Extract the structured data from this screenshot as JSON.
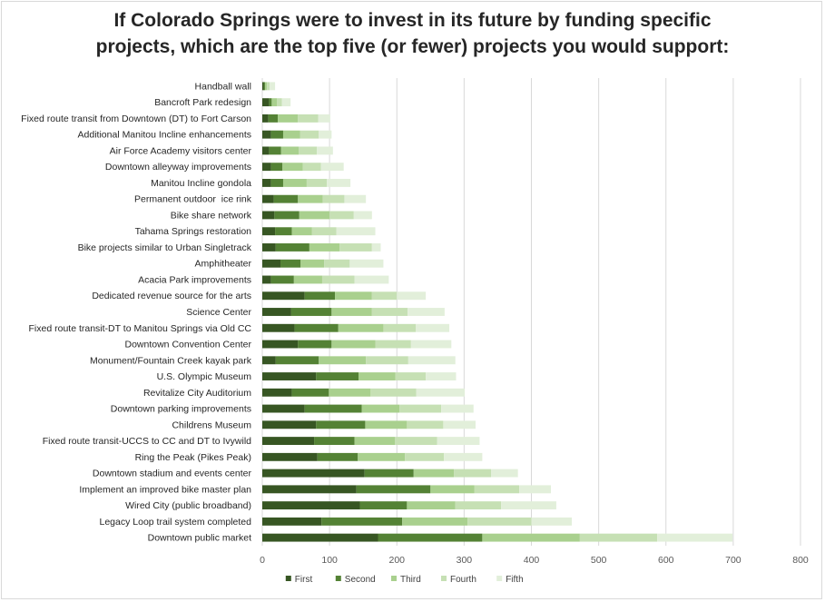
{
  "chart_data": {
    "type": "bar",
    "orientation": "horizontal",
    "stacked": true,
    "title_lines": [
      "If Colorado Springs were to invest in its future by funding specific",
      "projects, which are the top five (or fewer) projects you would support:"
    ],
    "categories": [
      "Handball wall",
      "Bancroft Park redesign",
      "Fixed route transit from Downtown (DT) to Fort Carson",
      "Additional Manitou Incline enhancements",
      "Air Force Academy visitors center",
      "Downtown alleyway improvements",
      "Manitou Incline gondola",
      "Permanent outdoor  ice rink",
      "Bike share network",
      "Tahama Springs restoration",
      "Bike projects similar to Urban Singletrack",
      "Amphitheater",
      "Acacia Park improvements",
      "Dedicated revenue source for the arts",
      "Science Center",
      "Fixed route transit-DT to Manitou Springs via Old CC",
      "Downtown Convention Center",
      "Monument/Fountain Creek kayak park",
      "U.S. Olympic Museum",
      "Revitalize City Auditorium",
      "Downtown parking improvements",
      "Childrens Museum",
      "Fixed route transit-UCCS to CC and DT to Ivywild",
      "Ring the Peak (Pikes Peak)",
      "Downtown stadium and events center",
      "Implement an improved bike master plan",
      "Wired City (public broadband)",
      "Legacy Loop trail system completed",
      "Downtown public market"
    ],
    "series": [
      {
        "name": "First",
        "color": "#375623",
        "values": [
          2,
          10,
          9,
          13,
          10,
          13,
          13,
          17,
          18,
          19,
          20,
          27,
          13,
          63,
          43,
          48,
          53,
          20,
          80,
          44,
          63,
          80,
          77,
          82,
          152,
          140,
          145,
          88,
          172
        ]
      },
      {
        "name": "Second",
        "color": "#548235",
        "values": [
          2,
          4,
          14,
          18,
          18,
          17,
          18,
          36,
          37,
          25,
          50,
          30,
          34,
          45,
          60,
          65,
          50,
          64,
          63,
          55,
          85,
          73,
          60,
          60,
          73,
          110,
          70,
          120,
          155
        ]
      },
      {
        "name": "Third",
        "color": "#a9d08e",
        "values": [
          3,
          8,
          30,
          25,
          26,
          30,
          35,
          37,
          45,
          30,
          45,
          35,
          42,
          55,
          60,
          67,
          65,
          70,
          55,
          62,
          56,
          62,
          60,
          70,
          60,
          65,
          72,
          97,
          145
        ]
      },
      {
        "name": "Fourth",
        "color": "#c6e0b4",
        "values": [
          4,
          7,
          30,
          28,
          27,
          27,
          30,
          32,
          36,
          36,
          48,
          38,
          48,
          37,
          53,
          48,
          53,
          63,
          45,
          68,
          62,
          54,
          63,
          58,
          55,
          67,
          68,
          95,
          115
        ]
      },
      {
        "name": "Fifth",
        "color": "#e2efda",
        "values": [
          8,
          13,
          18,
          19,
          24,
          34,
          35,
          32,
          27,
          58,
          13,
          50,
          51,
          43,
          55,
          50,
          60,
          70,
          45,
          72,
          48,
          48,
          63,
          57,
          40,
          47,
          82,
          60,
          112
        ]
      }
    ],
    "xlim": [
      0,
      800
    ],
    "xticks": [
      0,
      100,
      200,
      300,
      400,
      500,
      600,
      700,
      800
    ],
    "grid": true,
    "legend_position": "bottom"
  }
}
